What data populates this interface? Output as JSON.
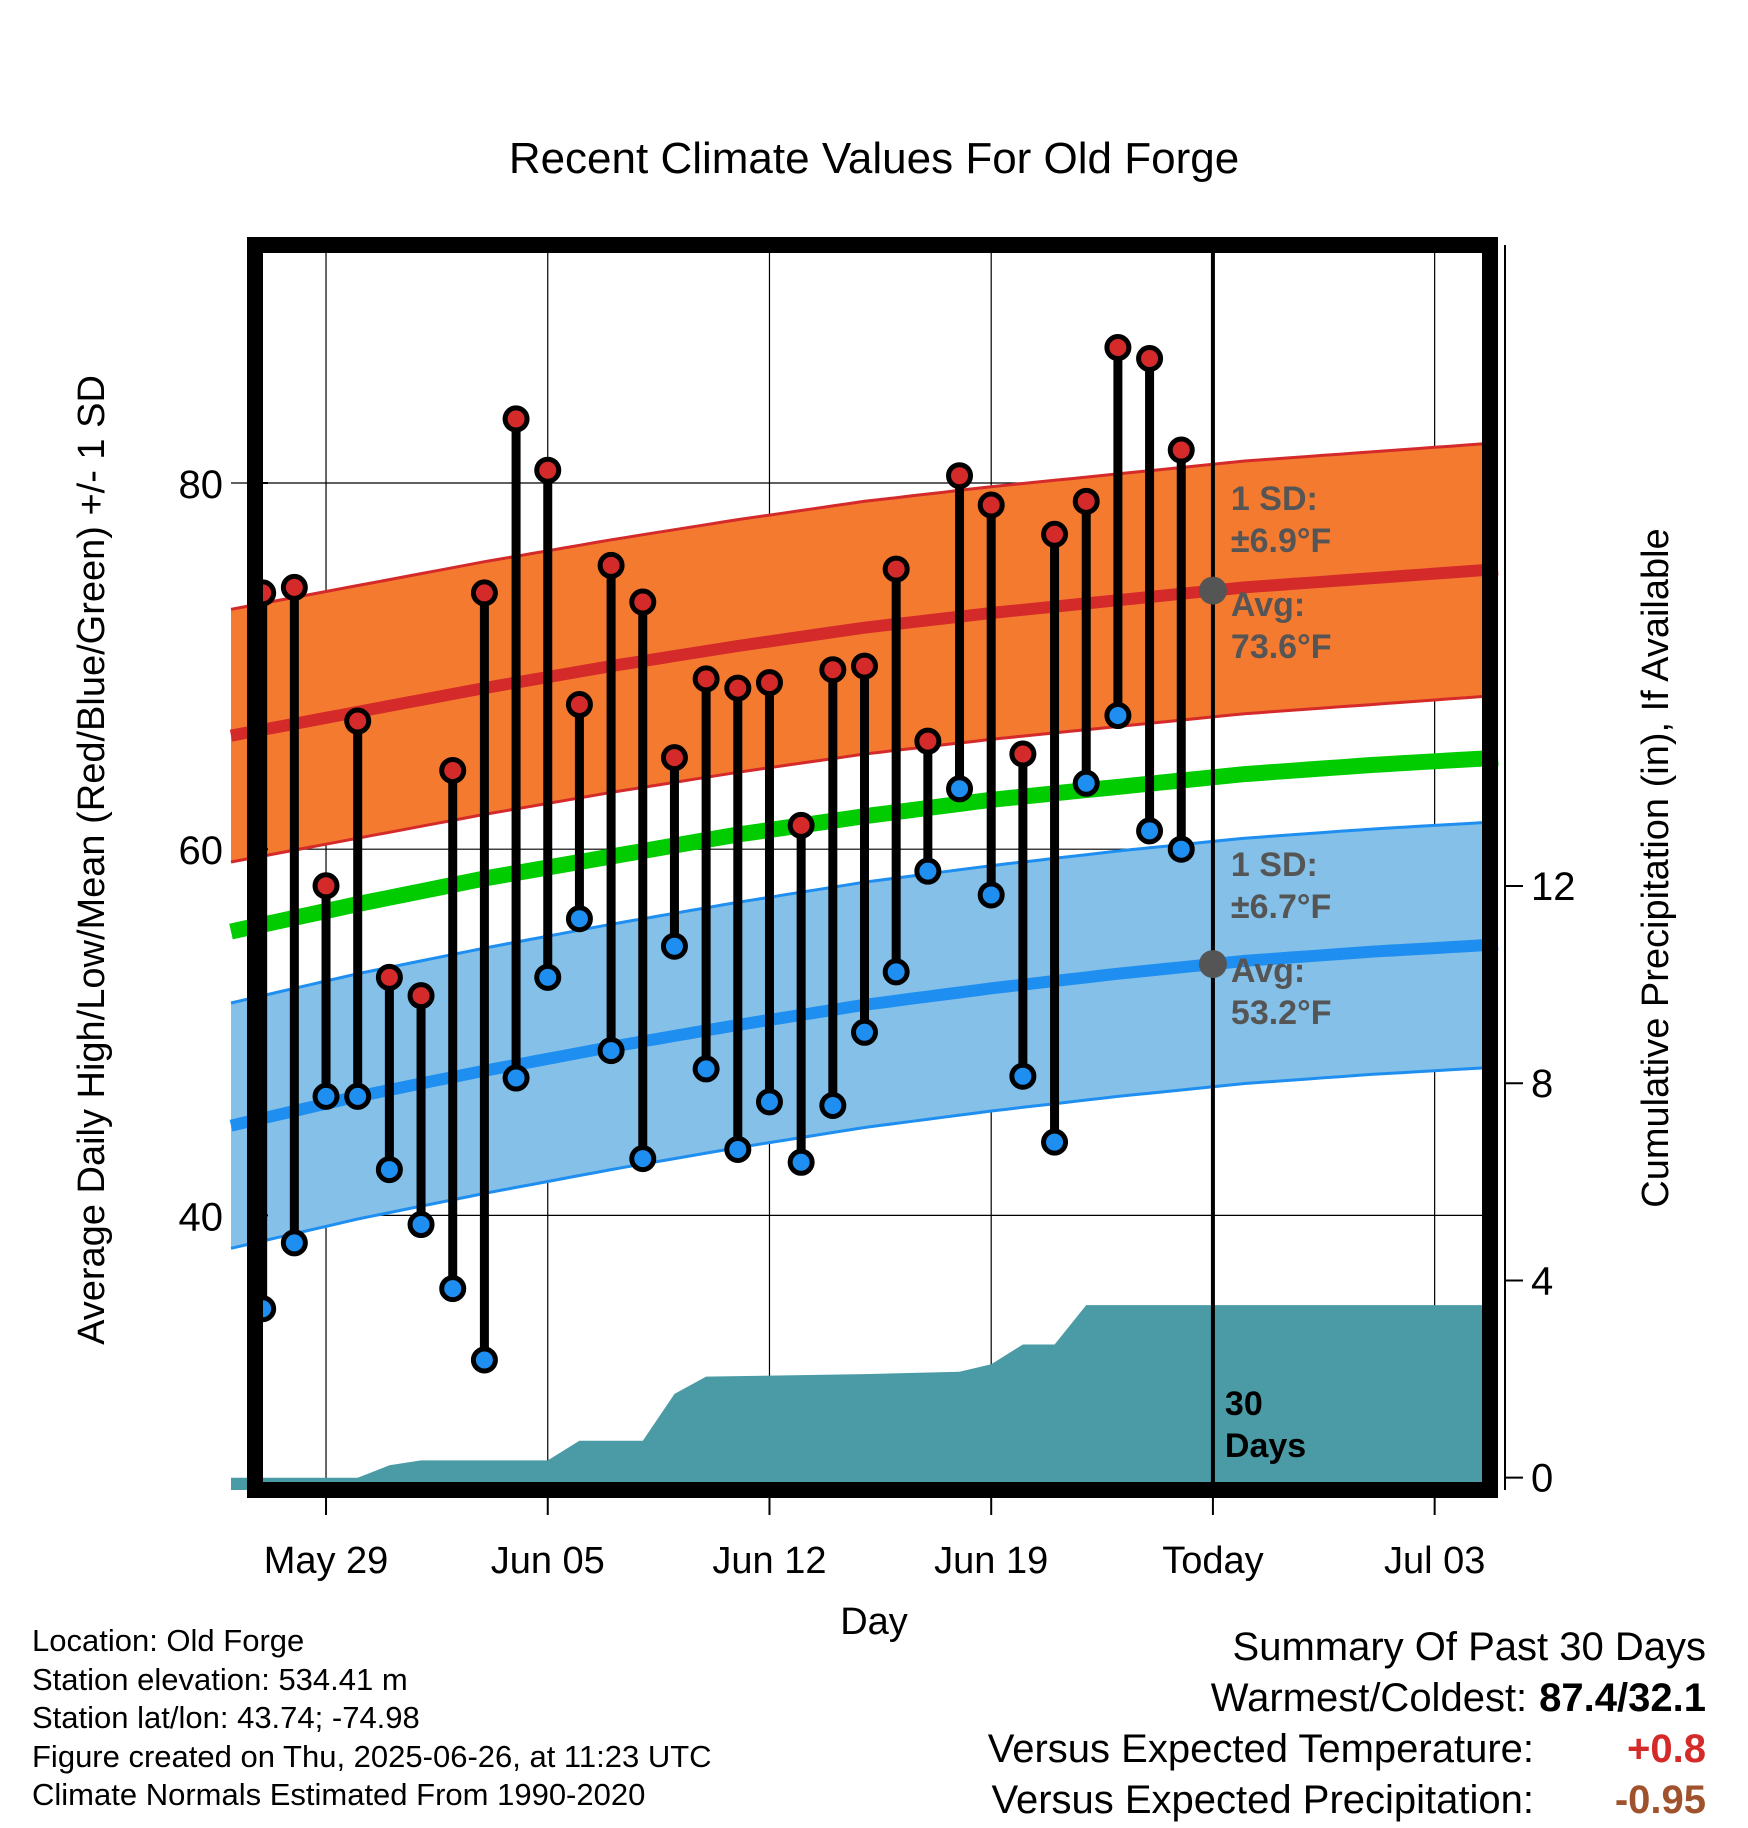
{
  "chart_data": {
    "type": "line",
    "title": "Recent Climate Values For Old Forge",
    "xlabel": "Day",
    "ylabel": "Average Daily High/Low/Mean (Red/Blue/Green) +/- 1 SD",
    "y2label": "Cumulative Precipitation (in), If Available",
    "x_tick_labels": [
      "May 29",
      "Jun 05",
      "Jun 12",
      "Jun 19",
      "Today",
      "Jul 03"
    ],
    "x_tick_days": [
      0,
      7,
      14,
      21,
      28,
      35
    ],
    "xlim": [
      -3,
      37
    ],
    "ylim": [
      25,
      93
    ],
    "y_ticks": [
      40,
      60,
      80
    ],
    "y_minor_ticks": [
      30,
      50,
      70,
      90
    ],
    "y2lim": [
      -0.25,
      25
    ],
    "y2_ticks": [
      0,
      4,
      8,
      12
    ],
    "grid": true,
    "today_day": 28,
    "observed": {
      "days": [
        -2,
        -1,
        0,
        1,
        2,
        3,
        4,
        5,
        6,
        7,
        8,
        9,
        10,
        11,
        12,
        13,
        14,
        15,
        16,
        17,
        18,
        19,
        20,
        21,
        22,
        23,
        24,
        25,
        26,
        27
      ],
      "highs": [
        74.0,
        74.3,
        58.0,
        67.0,
        53.0,
        52.0,
        64.3,
        74.0,
        83.5,
        80.7,
        67.9,
        75.5,
        73.5,
        65.0,
        69.3,
        68.8,
        69.1,
        61.3,
        69.8,
        70.0,
        75.3,
        65.9,
        80.4,
        78.8,
        65.2,
        77.2,
        79.0,
        87.4,
        86.8,
        81.8
      ],
      "lows": [
        34.9,
        38.5,
        46.5,
        46.5,
        42.5,
        39.5,
        36.0,
        32.1,
        47.5,
        53.0,
        56.2,
        49.0,
        43.1,
        54.7,
        48.0,
        43.6,
        46.2,
        42.9,
        46.0,
        50.0,
        53.3,
        58.8,
        63.3,
        57.5,
        47.6,
        44.0,
        63.6,
        67.3,
        61.0,
        60.0
      ]
    },
    "normals": {
      "days": [
        -3,
        1,
        5,
        9,
        13,
        17,
        21,
        25,
        29,
        33,
        37
      ],
      "high_avg": [
        66.2,
        67.5,
        68.8,
        70.0,
        71.1,
        72.1,
        72.9,
        73.6,
        74.3,
        74.8,
        75.3
      ],
      "high_sd": 6.9,
      "low_avg": [
        44.9,
        46.5,
        47.9,
        49.2,
        50.4,
        51.5,
        52.4,
        53.2,
        53.9,
        54.4,
        54.8
      ],
      "low_sd": 6.7,
      "mean_avg": [
        55.5,
        57.0,
        58.4,
        59.6,
        60.8,
        61.8,
        62.7,
        63.4,
        64.1,
        64.6,
        65.0
      ]
    },
    "precipitation": {
      "days": [
        -3,
        1,
        2,
        3,
        7,
        8,
        10,
        11,
        12,
        17,
        20,
        21,
        22,
        23,
        24,
        25,
        37
      ],
      "cumulative_in": [
        0.0,
        0.0,
        0.25,
        0.35,
        0.35,
        0.75,
        0.75,
        1.7,
        2.05,
        2.1,
        2.15,
        2.3,
        2.7,
        2.7,
        3.5,
        3.5,
        3.5
      ]
    },
    "annotations": {
      "high_sd_label": "1 SD:",
      "high_sd_value": "±6.9°F",
      "high_avg_label": "Avg:",
      "high_avg_value": "73.6°F",
      "low_sd_label": "1 SD:",
      "low_sd_value": "±6.7°F",
      "low_avg_label": "Avg:",
      "low_avg_value": "53.2°F",
      "period_number": "30",
      "period_label": "Days"
    },
    "colors": {
      "high_band": "#f47a30",
      "high_line": "#d42a2a",
      "low_band": "#84c0e8",
      "low_line": "#1e8ff0",
      "mean_line": "#00cc00",
      "precip": "#4a9ba6",
      "high_marker": "#d42a2a",
      "low_marker": "#1e8ff0",
      "annotation_text": "#555555",
      "today_marker": "#555555"
    }
  },
  "info": {
    "location": "Location: Old Forge",
    "elevation": "Station elevation: 534.41 m",
    "latlon": "Station lat/lon: 43.74; -74.98",
    "created": "Figure created on Thu, 2025-06-26, at 11:23 UTC",
    "normals_period": "Climate Normals Estimated From 1990-2020"
  },
  "summary": {
    "title": "Summary Of Past 30 Days",
    "warm_cold_label": "Warmest/Coldest:",
    "warm_cold_value": "87.4/32.1",
    "temp_label": "Versus Expected Temperature:",
    "temp_value": "+0.8",
    "temp_color": "#d42a2a",
    "precip_label": "Versus Expected Precipitation:",
    "precip_value": "-0.95",
    "precip_color": "#a0522d"
  }
}
